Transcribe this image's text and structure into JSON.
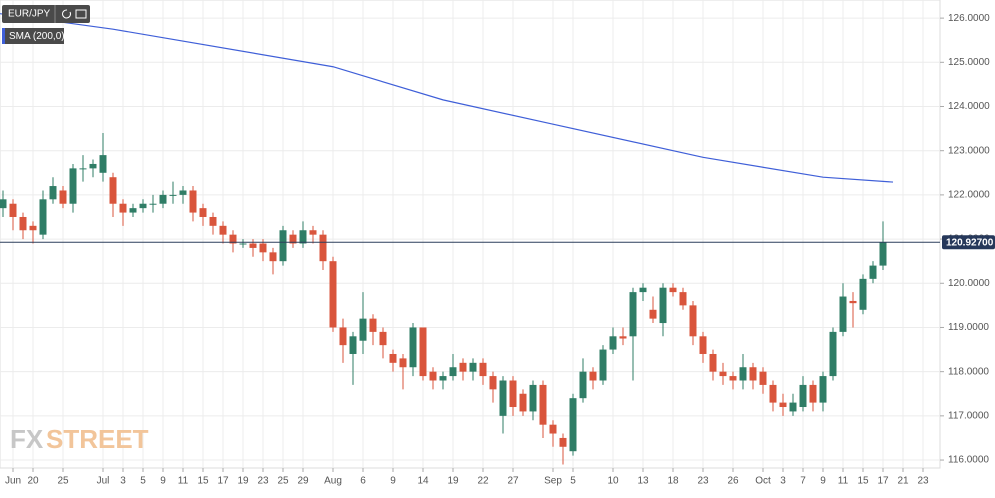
{
  "chart_data": {
    "type": "candlestick",
    "symbol": "EUR/JPY",
    "indicator": "SMA (200,0)",
    "watermark": [
      "FX",
      "STREET"
    ],
    "up_color": "#2f7d66",
    "down_color": "#d9553c",
    "sma_color": "#3f5fd8",
    "grid": true,
    "xlim": [
      -0.3,
      93.7
    ],
    "ylim": [
      115.82,
      126.41
    ],
    "yticks": [
      {
        "value": 116,
        "label": "116.0000"
      },
      {
        "value": 117,
        "label": "117.0000"
      },
      {
        "value": 118,
        "label": "118.0000"
      },
      {
        "value": 119,
        "label": "119.0000"
      },
      {
        "value": 120,
        "label": "120.0000"
      },
      {
        "value": 121,
        "label": "121.0000"
      },
      {
        "value": 122,
        "label": "122.0000"
      },
      {
        "value": 123,
        "label": "123.0000"
      },
      {
        "value": 124,
        "label": "124.0000"
      },
      {
        "value": 125,
        "label": "125.0000"
      },
      {
        "value": 126,
        "label": "126.0000"
      }
    ],
    "xticks": [
      {
        "value": 1,
        "label": "Jun"
      },
      {
        "value": 3,
        "label": "20"
      },
      {
        "value": 6,
        "label": "25"
      },
      {
        "value": 10,
        "label": "Jul"
      },
      {
        "value": 12,
        "label": "3"
      },
      {
        "value": 14,
        "label": "5"
      },
      {
        "value": 16,
        "label": "9"
      },
      {
        "value": 18,
        "label": "11"
      },
      {
        "value": 20,
        "label": "15"
      },
      {
        "value": 22,
        "label": "17"
      },
      {
        "value": 24,
        "label": "19"
      },
      {
        "value": 26,
        "label": "23"
      },
      {
        "value": 28,
        "label": "25"
      },
      {
        "value": 30,
        "label": "29"
      },
      {
        "value": 33,
        "label": "Aug"
      },
      {
        "value": 36,
        "label": "6"
      },
      {
        "value": 39,
        "label": "9"
      },
      {
        "value": 42,
        "label": "14"
      },
      {
        "value": 45,
        "label": "19"
      },
      {
        "value": 48,
        "label": "22"
      },
      {
        "value": 51,
        "label": "27"
      },
      {
        "value": 55,
        "label": "Sep"
      },
      {
        "value": 57,
        "label": "5"
      },
      {
        "value": 61,
        "label": "10"
      },
      {
        "value": 64,
        "label": "13"
      },
      {
        "value": 67,
        "label": "18"
      },
      {
        "value": 70,
        "label": "23"
      },
      {
        "value": 73,
        "label": "26"
      },
      {
        "value": 76,
        "label": "Oct"
      },
      {
        "value": 78,
        "label": "3"
      },
      {
        "value": 80,
        "label": "7"
      },
      {
        "value": 82,
        "label": "9"
      },
      {
        "value": 84,
        "label": "11"
      },
      {
        "value": 86,
        "label": "15"
      },
      {
        "value": 88,
        "label": "17"
      },
      {
        "value": 90,
        "label": "21"
      },
      {
        "value": 92,
        "label": "23"
      }
    ],
    "open": [
      121.7,
      121.8,
      121.5,
      121.3,
      121.1,
      121.9,
      122.1,
      121.8,
      122.6,
      122.6,
      122.5,
      122.4,
      121.8,
      121.6,
      121.7,
      121.8,
      121.8,
      122.0,
      122.0,
      122.1,
      121.7,
      121.5,
      121.3,
      121.1,
      120.9,
      120.9,
      120.9,
      120.7,
      120.5,
      121.1,
      120.9,
      121.2,
      121.1,
      120.5,
      119.0,
      118.4,
      118.7,
      119.2,
      118.9,
      118.4,
      118.3,
      118.1,
      119.0,
      118.0,
      117.8,
      117.9,
      118.2,
      118.0,
      118.2,
      117.9,
      117.0,
      117.8,
      117.5,
      117.1,
      117.7,
      116.8,
      116.5,
      116.2,
      117.4,
      118.0,
      117.8,
      118.5,
      118.8,
      118.8,
      119.8,
      119.4,
      119.1,
      119.9,
      119.8,
      119.5,
      118.8,
      118.4,
      118.0,
      117.9,
      117.8,
      118.1,
      118.0,
      117.7,
      117.3,
      117.1,
      117.2,
      117.7,
      117.3,
      117.9,
      118.9,
      119.6,
      119.4,
      120.1,
      120.4
    ],
    "high": [
      122.1,
      121.9,
      121.6,
      121.4,
      122.1,
      122.4,
      122.2,
      122.7,
      122.9,
      122.8,
      123.4,
      122.5,
      121.9,
      121.8,
      121.9,
      122.0,
      122.1,
      122.3,
      122.2,
      122.2,
      121.8,
      121.6,
      121.4,
      121.2,
      121.0,
      121.0,
      121.0,
      120.8,
      121.3,
      121.2,
      121.4,
      121.3,
      121.2,
      120.6,
      119.2,
      118.9,
      119.8,
      119.3,
      119.0,
      118.5,
      118.4,
      119.1,
      119.0,
      118.1,
      118.0,
      118.4,
      118.3,
      118.3,
      118.3,
      118.0,
      117.9,
      117.9,
      117.6,
      117.8,
      117.8,
      116.9,
      116.6,
      117.5,
      118.3,
      118.1,
      118.6,
      119.0,
      119.0,
      119.9,
      120.0,
      119.7,
      120.0,
      120.0,
      119.9,
      119.6,
      118.9,
      118.5,
      118.2,
      118.0,
      118.4,
      118.2,
      118.1,
      117.8,
      117.5,
      117.5,
      117.9,
      117.8,
      118.0,
      119.0,
      120.0,
      119.8,
      120.2,
      120.5,
      121.4
    ],
    "low": [
      121.5,
      121.2,
      121.0,
      120.9,
      121.0,
      121.8,
      121.7,
      121.6,
      122.3,
      122.4,
      122.3,
      121.5,
      121.3,
      121.5,
      121.6,
      121.6,
      121.7,
      121.8,
      121.8,
      121.4,
      121.3,
      121.1,
      120.9,
      120.7,
      120.8,
      120.6,
      120.5,
      120.2,
      120.4,
      120.8,
      120.8,
      120.9,
      120.3,
      118.9,
      118.2,
      117.7,
      118.4,
      118.6,
      118.3,
      118.0,
      117.6,
      117.9,
      117.8,
      117.6,
      117.6,
      117.8,
      117.8,
      117.8,
      117.7,
      117.3,
      116.6,
      117.0,
      117.0,
      116.9,
      116.5,
      116.3,
      115.9,
      116.1,
      117.3,
      117.6,
      117.7,
      118.4,
      118.6,
      117.8,
      119.6,
      119.1,
      118.8,
      119.7,
      119.4,
      118.6,
      118.2,
      117.8,
      117.7,
      117.6,
      117.6,
      117.6,
      117.5,
      117.1,
      117.0,
      117.0,
      117.1,
      117.1,
      117.1,
      117.8,
      118.8,
      119.0,
      119.3,
      120.0,
      120.3
    ],
    "close": [
      121.9,
      121.5,
      121.2,
      121.2,
      121.9,
      122.2,
      121.8,
      122.6,
      122.6,
      122.7,
      122.9,
      121.8,
      121.6,
      121.7,
      121.8,
      121.8,
      122.0,
      122.0,
      122.1,
      121.6,
      121.5,
      121.3,
      121.1,
      120.9,
      120.9,
      120.8,
      120.7,
      120.5,
      121.2,
      120.9,
      121.2,
      121.1,
      120.5,
      119.0,
      118.6,
      118.8,
      119.2,
      118.9,
      118.6,
      118.2,
      118.1,
      119.0,
      117.9,
      117.8,
      117.9,
      118.1,
      118.0,
      118.2,
      117.9,
      117.6,
      117.8,
      117.2,
      117.1,
      117.7,
      116.8,
      116.6,
      116.3,
      117.4,
      118.0,
      117.8,
      118.5,
      118.8,
      118.75,
      119.8,
      119.9,
      119.2,
      119.9,
      119.8,
      119.5,
      118.8,
      118.4,
      118.0,
      117.9,
      117.8,
      118.1,
      117.8,
      117.7,
      117.3,
      117.2,
      117.3,
      117.7,
      117.3,
      117.9,
      118.9,
      119.7,
      119.55,
      120.1,
      120.4,
      120.93
    ],
    "sma": {
      "x": [
        -0.3,
        11,
        33,
        44,
        55,
        70,
        82,
        89
      ],
      "values": [
        126.1,
        125.75,
        124.9,
        124.15,
        123.6,
        122.85,
        122.4,
        122.29
      ]
    },
    "current_price": {
      "value": 120.927,
      "label": "120.92700"
    }
  }
}
